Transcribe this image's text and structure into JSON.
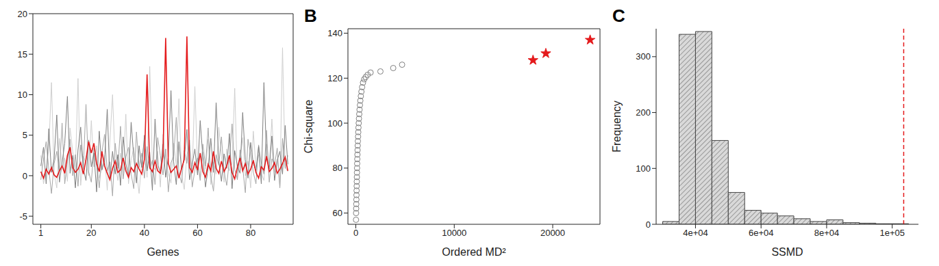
{
  "chart_data": [
    {
      "type": "line",
      "xlabel": "Genes",
      "x": [
        1,
        2,
        3,
        4,
        5,
        6,
        7,
        8,
        9,
        10,
        11,
        12,
        13,
        14,
        15,
        16,
        17,
        18,
        19,
        20,
        21,
        22,
        23,
        24,
        25,
        26,
        27,
        28,
        29,
        30,
        31,
        32,
        33,
        34,
        35,
        36,
        37,
        38,
        39,
        40,
        41,
        42,
        43,
        44,
        45,
        46,
        47,
        48,
        49,
        50,
        51,
        52,
        53,
        54,
        55,
        56,
        57,
        58,
        59,
        60,
        61,
        62,
        63,
        64,
        65,
        66,
        67,
        68,
        69,
        70,
        71,
        72,
        73,
        74,
        75,
        76,
        77,
        78,
        79,
        80,
        81,
        82,
        83,
        84,
        85,
        86,
        87,
        88,
        89,
        90,
        91,
        92,
        93,
        94
      ],
      "xlim": [
        -2,
        96
      ],
      "xticks": [
        1,
        20,
        40,
        60,
        80
      ],
      "ylim": [
        -6,
        20
      ],
      "yticks": [
        -5,
        0,
        5,
        10,
        15,
        20
      ],
      "series": [
        {
          "color": "#cfcfcf",
          "values": [
            2.5,
            -1.0,
            0.8,
            3.3,
            11.5,
            0.2,
            -1.5,
            4.6,
            1.0,
            2.2,
            -0.7,
            5.9,
            3.0,
            0.5,
            12.0,
            -1.2,
            2.4,
            1.6,
            0.0,
            6.8,
            1.1,
            3.7,
            -0.3,
            0.9,
            2.5,
            -1.8,
            4.2,
            10.0,
            1.5,
            -0.6,
            2.8,
            0.4,
            7.6,
            -1.0,
            1.9,
            3.5,
            0.6,
            -2.2,
            2.0,
            4.3,
            -0.2,
            13.5,
            1.4,
            0.7,
            3.0,
            -1.4,
            5.1,
            2.2,
            0.3,
            -0.9,
            4.0,
            1.3,
            9.5,
            0.1,
            -1.7,
            2.6,
            3.8,
            0.5,
            11.0,
            1.2,
            -0.4,
            2.9,
            0.8,
            4.5,
            -1.1,
            1.7,
            0.2,
            6.0,
            2.4,
            -0.8,
            3.3,
            0.6,
            1.5,
            10.8,
            -0.3,
            2.1,
            4.7,
            0.0,
            1.8,
            -1.5,
            5.5,
            1.0,
            2.6,
            0.3,
            -0.6,
            3.9,
            1.2,
            7.0,
            0.4,
            2.0,
            -1.3,
            15.8,
            1.1,
            0.5
          ]
        },
        {
          "color": "#a6a6a6",
          "values": [
            -0.5,
            2.0,
            4.2,
            0.8,
            -2.2,
            1.5,
            3.0,
            0.4,
            6.5,
            -1.0,
            1.8,
            4.5,
            0.0,
            2.6,
            -1.3,
            3.8,
            1.1,
            8.8,
            0.5,
            -0.8,
            3.4,
            1.2,
            -1.5,
            2.9,
            5.1,
            0.6,
            1.7,
            -2.5,
            4.0,
            0.9,
            6.1,
            -0.4,
            2.3,
            3.5,
            0.2,
            -1.6,
            5.4,
            1.0,
            2.8,
            -0.3,
            3.6,
            0.8,
            1.9,
            -1.1,
            4.7,
            2.5,
            0.1,
            3.3,
            -2.0,
            1.6,
            2.4,
            7.2,
            0.3,
            -0.9,
            3.1,
            1.5,
            4.4,
            -1.4,
            0.7,
            2.2,
            -0.6,
            3.9,
            1.2,
            5.9,
            0.0,
            -1.9,
            2.6,
            1.3,
            4.8,
            0.5,
            -1.2,
            2.0,
            6.4,
            0.8,
            -0.5,
            3.2,
            1.0,
            -2.1,
            4.5,
            2.7,
            0.4,
            -1.0,
            3.8,
            1.6,
            0.2,
            5.6,
            -0.8,
            2.1,
            1.3,
            3.4,
            -1.5,
            4.6,
            0.9,
            2.5
          ]
        },
        {
          "color": "#7f7f7f",
          "values": [
            1.2,
            3.5,
            -1.0,
            5.8,
            0.4,
            2.1,
            7.5,
            -0.8,
            1.6,
            4.0,
            9.8,
            0.3,
            2.5,
            -1.5,
            3.2,
            6.0,
            0.9,
            -0.6,
            4.4,
            1.1,
            2.8,
            -2.0,
            5.5,
            0.7,
            1.9,
            8.2,
            -0.4,
            3.0,
            0.2,
            2.6,
            -1.2,
            4.8,
            1.5,
            0.0,
            6.6,
            2.2,
            -0.9,
            3.7,
            1.0,
            5.0,
            0.6,
            2.9,
            -1.8,
            7.0,
            1.3,
            0.5,
            3.9,
            -0.2,
            2.4,
            10.5,
            1.7,
            -1.1,
            4.2,
            0.8,
            2.0,
            5.7,
            -0.5,
            1.4,
            3.3,
            0.1,
            6.8,
            2.3,
            -1.4,
            1.0,
            4.6,
            0.4,
            9.0,
            1.8,
            -0.7,
            2.7,
            0.9,
            5.2,
            -1.6,
            3.1,
            1.2,
            0.3,
            7.8,
            2.0,
            -0.3,
            4.1,
            1.5,
            0.6,
            3.6,
            -1.0,
            11.5,
            2.2,
            0.8,
            4.9,
            -0.6,
            1.9,
            3.0,
            0.2,
            6.2,
            1.4
          ]
        },
        {
          "color": "#e41a1c",
          "values": [
            0.5,
            -0.3,
            0.8,
            0.2,
            1.0,
            0.1,
            -0.2,
            0.6,
            1.2,
            0.3,
            2.5,
            3.5,
            1.0,
            0.4,
            0.8,
            1.6,
            0.2,
            2.0,
            4.2,
            2.8,
            4.0,
            1.5,
            0.5,
            3.0,
            1.2,
            0.3,
            -0.5,
            0.9,
            1.8,
            0.4,
            0.7,
            2.2,
            0.6,
            -0.2,
            1.0,
            0.5,
            1.5,
            0.8,
            0.2,
            2.0,
            12.5,
            1.0,
            0.5,
            1.8,
            0.6,
            0.3,
            2.5,
            17.0,
            1.5,
            0.4,
            0.8,
            1.2,
            -0.3,
            0.9,
            2.0,
            17.2,
            1.0,
            0.4,
            1.6,
            0.7,
            2.8,
            0.5,
            -0.2,
            1.4,
            0.6,
            3.0,
            0.9,
            0.3,
            1.8,
            0.5,
            1.2,
            2.5,
            0.4,
            -0.4,
            1.0,
            2.2,
            0.6,
            1.5,
            0.2,
            0.8,
            1.9,
            0.4,
            -0.3,
            1.1,
            0.7,
            2.4,
            0.5,
            0.9,
            1.6,
            0.3,
            0.8,
            1.5,
            2.3,
            0.6
          ]
        }
      ]
    },
    {
      "type": "scatter",
      "title": "B",
      "xlabel": "Ordered MD²",
      "ylabel": "Chi-square",
      "xlim": [
        -800,
        24800
      ],
      "xticks": [
        0,
        10000,
        20000
      ],
      "ylim": [
        55,
        142
      ],
      "yticks": [
        60,
        80,
        100,
        120,
        140
      ],
      "series": [
        {
          "color": "#808080",
          "marker": "open_circle",
          "x": [
            20,
            30,
            40,
            50,
            60,
            70,
            80,
            90,
            100,
            110,
            120,
            130,
            140,
            150,
            165,
            180,
            195,
            210,
            230,
            250,
            270,
            295,
            320,
            350,
            380,
            420,
            460,
            510,
            570,
            640,
            730,
            850,
            1000,
            1200,
            1500,
            2500,
            3800,
            4700
          ],
          "y": [
            57,
            60,
            62,
            64,
            66,
            68,
            70,
            72,
            74,
            76,
            78,
            80,
            82,
            84,
            86,
            88,
            90,
            92,
            94,
            96,
            98,
            100,
            102,
            104,
            106,
            108,
            110,
            112,
            114,
            116,
            118,
            119.5,
            120.5,
            121.5,
            122.5,
            123,
            124.5,
            126
          ]
        },
        {
          "color": "#e41a1c",
          "marker": "star",
          "x": [
            18000,
            19300,
            23800
          ],
          "y": [
            128,
            131,
            137
          ]
        }
      ]
    },
    {
      "type": "histogram",
      "title": "C",
      "xlabel": "SSMD",
      "ylabel": "Frequency",
      "bins": [
        30000,
        35000,
        40000,
        45000,
        50000,
        55000,
        60000,
        65000,
        70000,
        75000,
        80000,
        85000,
        90000,
        95000,
        100000,
        105000
      ],
      "counts": [
        5,
        340,
        345,
        150,
        57,
        25,
        20,
        15,
        10,
        5,
        8,
        3,
        2,
        1,
        1
      ],
      "color": "#d9d9d9",
      "xlim": [
        28000,
        108000
      ],
      "xticks": [
        {
          "value": 40000,
          "label": "4e+04"
        },
        {
          "value": 60000,
          "label": "6e+04"
        },
        {
          "value": 80000,
          "label": "8e+04"
        },
        {
          "value": 100000,
          "label": "1e+05"
        }
      ],
      "ylim": [
        0,
        350
      ],
      "yticks": [
        0,
        100,
        200,
        300
      ],
      "reference_line": {
        "x": 103500,
        "color": "#e41a1c",
        "line_style": "dashed"
      }
    }
  ]
}
